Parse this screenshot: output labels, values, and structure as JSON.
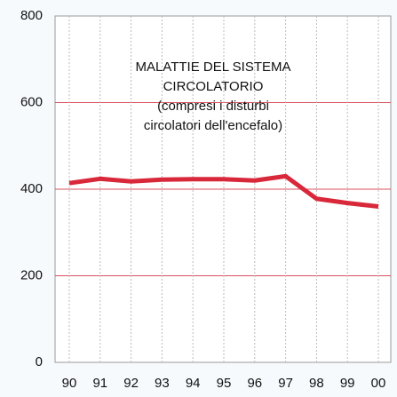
{
  "chart_data": {
    "type": "line",
    "title_lines": [
      "MALATTIE DEL SISTEMA",
      "CIRCOLATORIO",
      "(compresi i disturbi",
      "circolatori dell'encefalo)"
    ],
    "categories": [
      "90",
      "91",
      "92",
      "93",
      "94",
      "95",
      "96",
      "97",
      "98",
      "99",
      "00"
    ],
    "values": [
      414,
      424,
      418,
      422,
      423,
      423,
      420,
      430,
      378,
      368,
      360
    ],
    "color": "#d8283a",
    "ylim": [
      0,
      800
    ],
    "yticks": [
      0,
      200,
      400,
      600,
      800
    ],
    "grid": true
  }
}
